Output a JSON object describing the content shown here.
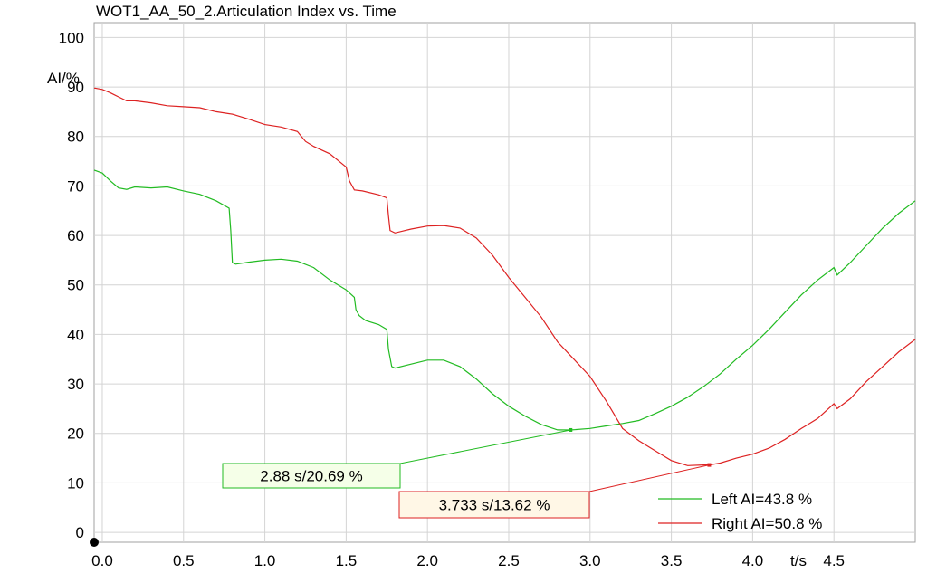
{
  "chart_data": {
    "type": "line",
    "title": "WOT1_AA_50_2.Articulation Index vs. Time",
    "ylabel": "AI/%",
    "xlabel": "t/s",
    "xlim": [
      -0.05,
      5.0
    ],
    "ylim": [
      -2,
      103
    ],
    "x_ticks": [
      "0.0",
      "0.5",
      "1.0",
      "1.5",
      "2.0",
      "2.5",
      "3.0",
      "3.5",
      "4.0",
      "4.5"
    ],
    "x_tick_values": [
      0.0,
      0.5,
      1.0,
      1.5,
      2.0,
      2.5,
      3.0,
      3.5,
      4.0,
      4.5
    ],
    "y_ticks": [
      "0",
      "10",
      "20",
      "30",
      "40",
      "50",
      "60",
      "70",
      "80",
      "90",
      "100"
    ],
    "y_tick_values": [
      0,
      10,
      20,
      30,
      40,
      50,
      60,
      70,
      80,
      90,
      100
    ],
    "grid": true,
    "legend_position": "bottom-right",
    "series": [
      {
        "name": "Left AI=43.8 %",
        "color": "#22bb22",
        "points": [
          [
            -0.05,
            73.2
          ],
          [
            0.0,
            72.6
          ],
          [
            0.05,
            71.0
          ],
          [
            0.1,
            69.6
          ],
          [
            0.15,
            69.3
          ],
          [
            0.2,
            69.8
          ],
          [
            0.3,
            69.6
          ],
          [
            0.4,
            69.8
          ],
          [
            0.5,
            69.0
          ],
          [
            0.6,
            68.3
          ],
          [
            0.7,
            67.0
          ],
          [
            0.78,
            65.5
          ],
          [
            0.79,
            61.0
          ],
          [
            0.8,
            54.5
          ],
          [
            0.82,
            54.2
          ],
          [
            0.9,
            54.6
          ],
          [
            1.0,
            55.0
          ],
          [
            1.1,
            55.2
          ],
          [
            1.2,
            54.8
          ],
          [
            1.3,
            53.5
          ],
          [
            1.4,
            51.0
          ],
          [
            1.5,
            49.0
          ],
          [
            1.55,
            47.5
          ],
          [
            1.56,
            45.0
          ],
          [
            1.58,
            43.8
          ],
          [
            1.62,
            42.8
          ],
          [
            1.7,
            42.0
          ],
          [
            1.75,
            41.0
          ],
          [
            1.76,
            37.0
          ],
          [
            1.78,
            33.5
          ],
          [
            1.8,
            33.2
          ],
          [
            1.9,
            34.0
          ],
          [
            2.0,
            34.8
          ],
          [
            2.1,
            34.8
          ],
          [
            2.2,
            33.5
          ],
          [
            2.3,
            31.0
          ],
          [
            2.4,
            28.0
          ],
          [
            2.5,
            25.5
          ],
          [
            2.6,
            23.5
          ],
          [
            2.7,
            21.8
          ],
          [
            2.8,
            20.7
          ],
          [
            2.88,
            20.69
          ],
          [
            3.0,
            21.0
          ],
          [
            3.1,
            21.5
          ],
          [
            3.2,
            22.0
          ],
          [
            3.3,
            22.6
          ],
          [
            3.4,
            24.0
          ],
          [
            3.5,
            25.5
          ],
          [
            3.6,
            27.3
          ],
          [
            3.7,
            29.5
          ],
          [
            3.8,
            32.0
          ],
          [
            3.9,
            35.0
          ],
          [
            4.0,
            37.8
          ],
          [
            4.1,
            41.0
          ],
          [
            4.2,
            44.5
          ],
          [
            4.3,
            48.0
          ],
          [
            4.4,
            51.0
          ],
          [
            4.5,
            53.5
          ],
          [
            4.52,
            52.0
          ],
          [
            4.6,
            54.5
          ],
          [
            4.7,
            58.0
          ],
          [
            4.8,
            61.5
          ],
          [
            4.9,
            64.5
          ],
          [
            5.0,
            67.0
          ]
        ]
      },
      {
        "name": "Right AI=50.8 %",
        "color": "#dd2222",
        "points": [
          [
            -0.05,
            89.8
          ],
          [
            0.0,
            89.5
          ],
          [
            0.05,
            88.8
          ],
          [
            0.1,
            88.0
          ],
          [
            0.15,
            87.2
          ],
          [
            0.2,
            87.2
          ],
          [
            0.3,
            86.8
          ],
          [
            0.4,
            86.2
          ],
          [
            0.5,
            86.0
          ],
          [
            0.6,
            85.8
          ],
          [
            0.7,
            85.0
          ],
          [
            0.8,
            84.5
          ],
          [
            0.9,
            83.5
          ],
          [
            1.0,
            82.4
          ],
          [
            1.1,
            81.9
          ],
          [
            1.2,
            81.0
          ],
          [
            1.25,
            79.0
          ],
          [
            1.3,
            78.0
          ],
          [
            1.4,
            76.5
          ],
          [
            1.5,
            73.8
          ],
          [
            1.52,
            71.0
          ],
          [
            1.55,
            69.2
          ],
          [
            1.6,
            69.0
          ],
          [
            1.7,
            68.2
          ],
          [
            1.75,
            67.6
          ],
          [
            1.76,
            64.0
          ],
          [
            1.77,
            61.0
          ],
          [
            1.8,
            60.5
          ],
          [
            1.9,
            61.3
          ],
          [
            2.0,
            61.9
          ],
          [
            2.1,
            62.0
          ],
          [
            2.2,
            61.5
          ],
          [
            2.3,
            59.5
          ],
          [
            2.4,
            56.0
          ],
          [
            2.5,
            51.5
          ],
          [
            2.6,
            47.5
          ],
          [
            2.7,
            43.5
          ],
          [
            2.8,
            38.5
          ],
          [
            2.9,
            35.0
          ],
          [
            3.0,
            31.5
          ],
          [
            3.1,
            26.5
          ],
          [
            3.2,
            21.0
          ],
          [
            3.3,
            18.5
          ],
          [
            3.4,
            16.5
          ],
          [
            3.5,
            14.5
          ],
          [
            3.6,
            13.5
          ],
          [
            3.7,
            13.62
          ],
          [
            3.733,
            13.62
          ],
          [
            3.8,
            14.0
          ],
          [
            3.9,
            15.0
          ],
          [
            4.0,
            15.8
          ],
          [
            4.1,
            17.0
          ],
          [
            4.2,
            18.8
          ],
          [
            4.3,
            21.0
          ],
          [
            4.4,
            23.0
          ],
          [
            4.5,
            26.0
          ],
          [
            4.52,
            25.0
          ],
          [
            4.6,
            27.0
          ],
          [
            4.7,
            30.5
          ],
          [
            4.8,
            33.5
          ],
          [
            4.9,
            36.5
          ],
          [
            5.0,
            39.0
          ]
        ]
      }
    ],
    "annotations": [
      {
        "text": "2.88 s/20.69 %",
        "x": 2.88,
        "y": 20.69,
        "series": 0
      },
      {
        "text": "3.733 s/13.62 %",
        "x": 3.733,
        "y": 13.62,
        "series": 1
      }
    ]
  }
}
